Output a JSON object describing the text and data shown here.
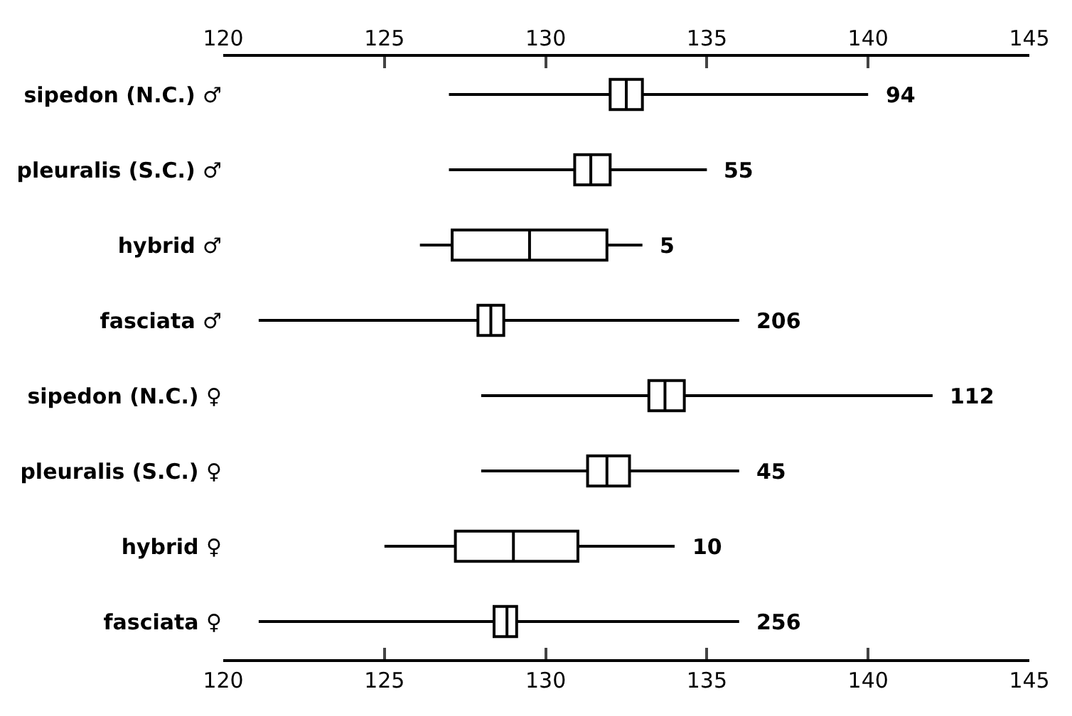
{
  "chart_data": {
    "type": "box",
    "orientation": "horizontal",
    "categories": [
      "sipedon (N.C.) ♂",
      "pleuralis (S.C.) ♂",
      "hybrid ♂",
      "fasciata ♂",
      "sipedon (N.C.) ♀",
      "pleuralis (S.C.) ♀",
      "hybrid ♀",
      "fasciata ♀"
    ],
    "boxes": [
      {
        "low": 127,
        "q1": 132,
        "median": 132.5,
        "q3": 133,
        "high": 140
      },
      {
        "low": 127,
        "q1": 130.9,
        "median": 131.4,
        "q3": 132,
        "high": 135
      },
      {
        "low": 126.1,
        "q1": 127.1,
        "median": 129.5,
        "q3": 131.9,
        "high": 133
      },
      {
        "low": 121.1,
        "q1": 127.9,
        "median": 128.3,
        "q3": 128.7,
        "high": 136
      },
      {
        "low": 128,
        "q1": 133.2,
        "median": 133.7,
        "q3": 134.3,
        "high": 142
      },
      {
        "low": 128,
        "q1": 131.3,
        "median": 131.9,
        "q3": 132.6,
        "high": 136
      },
      {
        "low": 125,
        "q1": 127.2,
        "median": 129,
        "q3": 131,
        "high": 134
      },
      {
        "low": 121.1,
        "q1": 128.4,
        "median": 128.8,
        "q3": 129.1,
        "high": 136
      }
    ],
    "color": "#000000",
    "xlim": [
      120,
      145
    ],
    "xticks": [
      120,
      125,
      130,
      135,
      140,
      145
    ],
    "x2lim": [
      120,
      145
    ],
    "x2ticks": [
      120,
      125,
      130,
      135,
      140,
      145
    ],
    "annotations": [
      {
        "text": "94",
        "x": 140,
        "y": "sipedon (N.C.) ♂"
      },
      {
        "text": "55",
        "x": 135,
        "y": "pleuralis (S.C.) ♂"
      },
      {
        "text": "5",
        "x": 133,
        "y": "hybrid ♂"
      },
      {
        "text": "206",
        "x": 136,
        "y": "fasciata ♂"
      },
      {
        "text": "112",
        "x": 142,
        "y": "sipedon (N.C.) ♀"
      },
      {
        "text": "45",
        "x": 136,
        "y": "pleuralis (S.C.) ♀"
      },
      {
        "text": "10",
        "x": 134,
        "y": "hybrid ♀"
      },
      {
        "text": "256",
        "x": 136,
        "y": "fasciata ♀"
      }
    ]
  }
}
